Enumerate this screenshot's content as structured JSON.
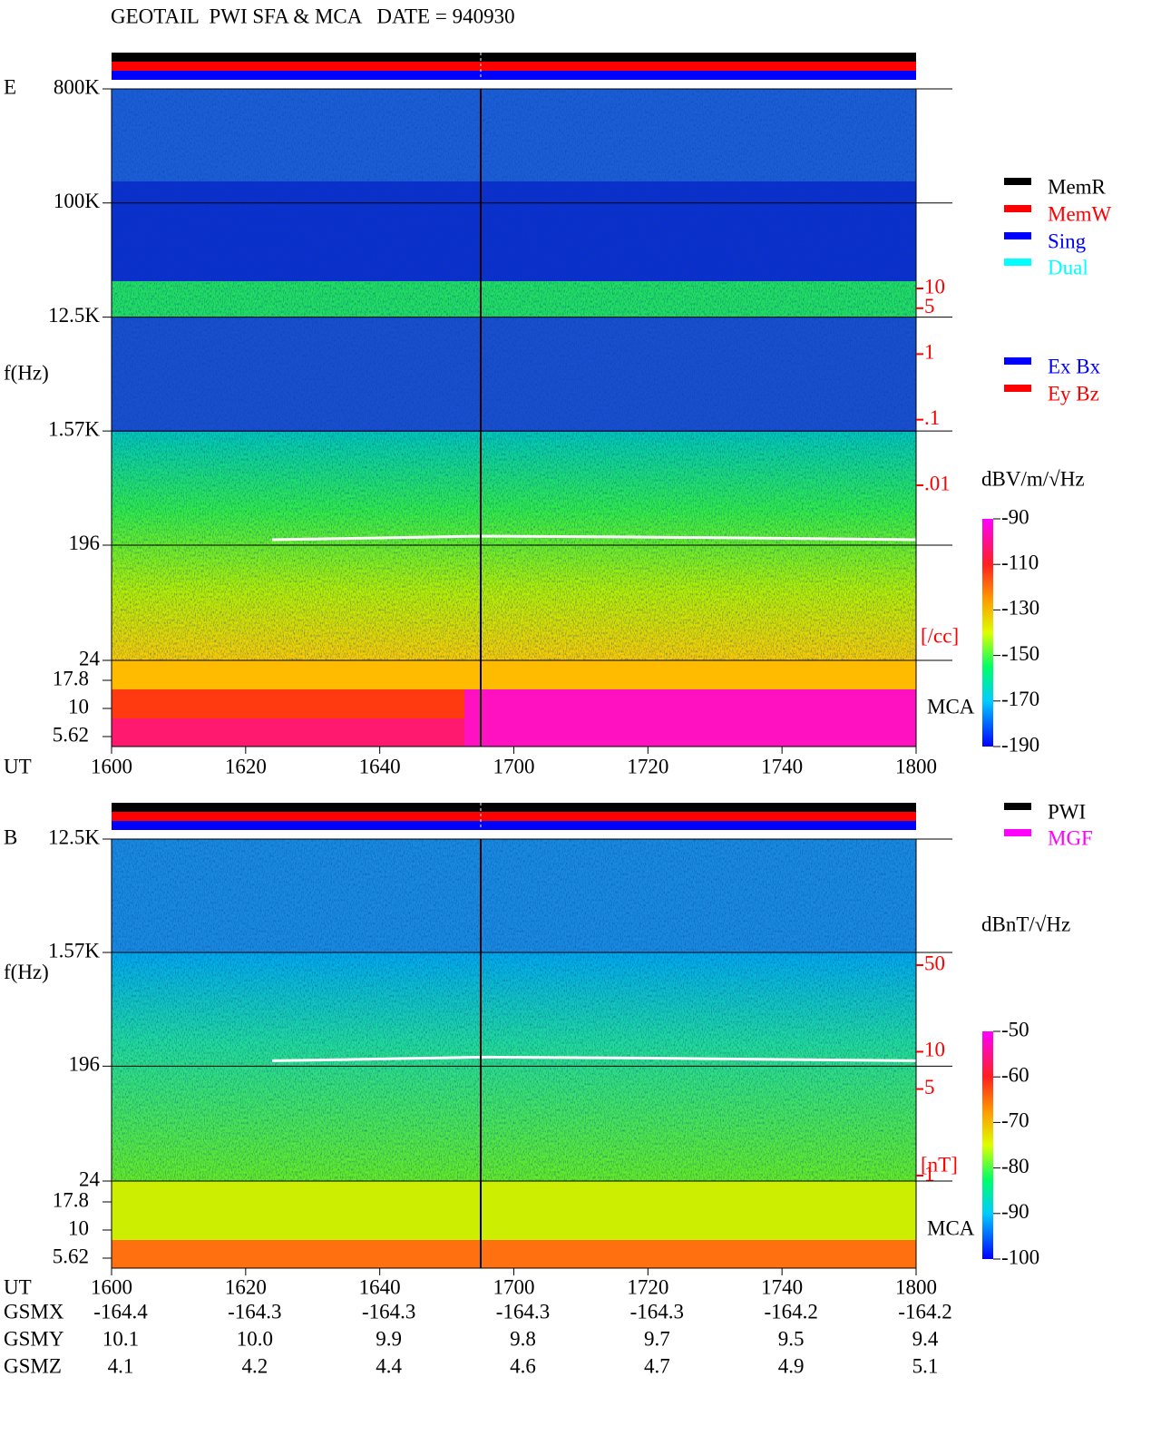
{
  "chart_data": [
    {
      "type": "spectrogram",
      "title": "GEOTAIL  PWI SFA & MCA   DATE = 940930",
      "panel_label": "E",
      "y_label": "f(Hz)",
      "x_label": "UT",
      "categories": [
        "1600",
        "1620",
        "1640",
        "1700",
        "1720",
        "1740",
        "1800"
      ],
      "log_scale": true,
      "ylim": [
        24,
        800000
      ],
      "yticks": [
        {
          "value": 800000,
          "label": "800K"
        },
        {
          "value": 100000,
          "label": "100K"
        },
        {
          "value": 12500,
          "label": "12.5K"
        },
        {
          "value": 1570,
          "label": "1.57K"
        },
        196,
        24
      ],
      "mca_label": "MCA",
      "mca_ylim": [
        5.62,
        17.8
      ],
      "mca_yticks": [
        17.8,
        10,
        5.62
      ],
      "legend": [
        {
          "name": "MemR",
          "color": "#000000"
        },
        {
          "name": "MemW",
          "color": "#ff0000"
        },
        {
          "name": "Sing",
          "color": "#0000ff"
        },
        {
          "name": "Dual",
          "color": "#00ffff"
        }
      ],
      "legend2": [
        {
          "name": "Ex Bx",
          "color": "#0000ff"
        },
        {
          "name": "Ey Bz",
          "color": "#ff0000"
        }
      ],
      "colorbar": {
        "label": "dBV/m/√Hz",
        "clim": [
          -190,
          -90
        ],
        "ticks": [
          -90,
          -110,
          -130,
          -150,
          -170,
          -190
        ]
      },
      "density": {
        "unit": "[/cc]",
        "color": "#ff0000",
        "ylim": [
          0.01,
          10
        ],
        "ticks": [
          10,
          5,
          1,
          {
            "value": 0.1,
            "label": ".1"
          },
          {
            "value": 0.01,
            "label": ".01"
          }
        ]
      }
    },
    {
      "type": "spectrogram",
      "panel_label": "B",
      "y_label": "f(Hz)",
      "x_label": "UT",
      "categories": [
        "1600",
        "1620",
        "1640",
        "1700",
        "1720",
        "1740",
        "1800"
      ],
      "log_scale": true,
      "ylim": [
        24,
        12500
      ],
      "yticks": [
        {
          "value": 12500,
          "label": "12.5K"
        },
        {
          "value": 1570,
          "label": "1.57K"
        },
        196,
        24
      ],
      "mca_label": "MCA",
      "mca_ylim": [
        5.62,
        17.8
      ],
      "mca_yticks": [
        17.8,
        10,
        5.62
      ],
      "legend": [
        {
          "name": "PWI",
          "color": "#000000"
        },
        {
          "name": "MGF",
          "color": "#ff00ff"
        }
      ],
      "colorbar": {
        "label": "dBnT/√Hz",
        "clim": [
          -100,
          -50
        ],
        "ticks": [
          -50,
          -60,
          -70,
          -80,
          -90,
          -100
        ]
      },
      "density": {
        "unit": "[nT]",
        "color": "#ff0000",
        "ylim": [
          1,
          50
        ],
        "ticks": [
          50,
          10,
          5,
          1
        ]
      },
      "orbit": [
        {
          "name": "GSMX",
          "values": [
            "-164.4",
            "-164.3",
            "-164.3",
            "-164.3",
            "-164.3",
            "-164.2",
            "-164.2"
          ]
        },
        {
          "name": "GSMY",
          "values": [
            "10.1",
            "10.0",
            "9.9",
            "9.8",
            "9.7",
            "9.5",
            "9.4"
          ]
        },
        {
          "name": "GSMZ",
          "values": [
            "4.1",
            "4.2",
            "4.4",
            "4.6",
            "4.7",
            "4.9",
            "5.1"
          ]
        }
      ]
    }
  ]
}
